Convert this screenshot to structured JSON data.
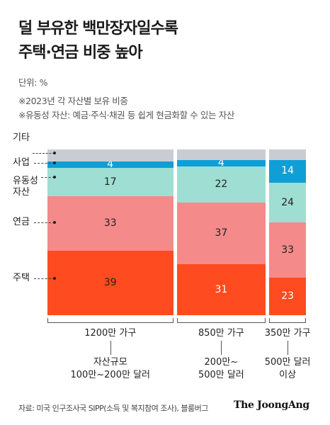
{
  "header": {
    "title_line1": "덜 부유한 백만장자일수록",
    "title_line2": "주택·연금 비중 높아",
    "unit": "단위: %",
    "note1": "※2023년 각 자산별 보유 비중",
    "note2": "※유동성 자산: 예금·주식·채권 등 쉽게 현금화할 수 있는 자산"
  },
  "legend_labels": {
    "other": "기타",
    "business": "사업",
    "liquid": "유동성\n자산",
    "pension": "연금",
    "house": "주택"
  },
  "colors": {
    "other": "#c9cdd3",
    "business": "#0f9fd6",
    "liquid": "#9fded2",
    "pension": "#f58a8a",
    "house": "#ff4b1f"
  },
  "chart_data": {
    "type": "bar",
    "stacked": true,
    "variable_width": true,
    "categories": [
      "100만~200만 달러",
      "200만~500만 달러",
      "500만 달러 이상"
    ],
    "households": [
      "1200만 가구",
      "850만 가구",
      "350만 가구"
    ],
    "household_counts_10k": [
      1200,
      850,
      350
    ],
    "size_axis_label": "자산규모",
    "size_labels": [
      "자산규모\n100만~200만 달러",
      "200만~\n500만 달러",
      "500만 달러\n이상"
    ],
    "series": [
      {
        "name": "주택",
        "key": "house",
        "values": [
          39,
          31,
          23
        ]
      },
      {
        "name": "연금",
        "key": "pension",
        "values": [
          33,
          37,
          33
        ]
      },
      {
        "name": "유동성 자산",
        "key": "liquid",
        "values": [
          17,
          22,
          24
        ]
      },
      {
        "name": "사업",
        "key": "business",
        "values": [
          4,
          4,
          14
        ]
      },
      {
        "name": "기타",
        "key": "other",
        "values": [
          7,
          6,
          6
        ]
      }
    ],
    "shown_values": {
      "house": [
        "39",
        "31",
        "23"
      ],
      "pension": [
        "33",
        "37",
        "33"
      ],
      "liquid": [
        "17",
        "22",
        "24"
      ],
      "business": [
        "4",
        "4",
        "14"
      ]
    },
    "ylim": [
      0,
      100
    ]
  },
  "footer": {
    "source": "자료: 미국 인구조사국 SIPP(소득 및 복지참여 조사), 블룸버그",
    "brand": "The JoongAng"
  }
}
